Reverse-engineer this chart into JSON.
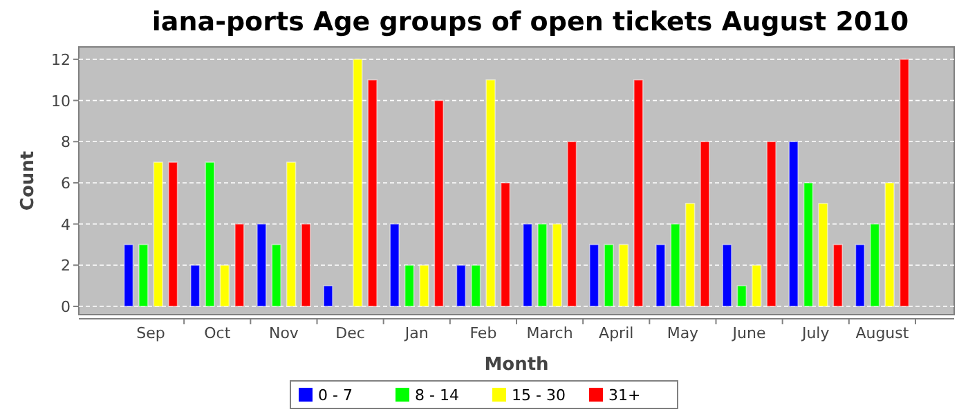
{
  "chart_data": {
    "type": "bar",
    "title": "iana-ports Age groups of open tickets August 2010",
    "xlabel": "Month",
    "ylabel": "Count",
    "categories": [
      "Sep",
      "Oct",
      "Nov",
      "Dec",
      "Jan",
      "Feb",
      "March",
      "April",
      "May",
      "June",
      "July",
      "August"
    ],
    "series": [
      {
        "name": "0 - 7",
        "color": "#0000ff",
        "values": [
          3,
          2,
          4,
          1,
          4,
          2,
          4,
          3,
          3,
          3,
          8,
          3
        ]
      },
      {
        "name": "8 - 14",
        "color": "#00ff00",
        "values": [
          3,
          7,
          3,
          0,
          2,
          2,
          4,
          3,
          4,
          1,
          6,
          4
        ]
      },
      {
        "name": "15 - 30",
        "color": "#ffff00",
        "values": [
          7,
          2,
          7,
          12,
          2,
          11,
          4,
          3,
          5,
          2,
          5,
          6
        ]
      },
      {
        "name": "31+",
        "color": "#ff0000",
        "values": [
          7,
          4,
          4,
          11,
          10,
          6,
          8,
          11,
          8,
          8,
          3,
          12
        ]
      }
    ],
    "ylim": [
      0,
      12.6
    ],
    "yticks": [
      0,
      2,
      4,
      6,
      8,
      10,
      12
    ],
    "grid": "y",
    "legend": "bottom"
  }
}
